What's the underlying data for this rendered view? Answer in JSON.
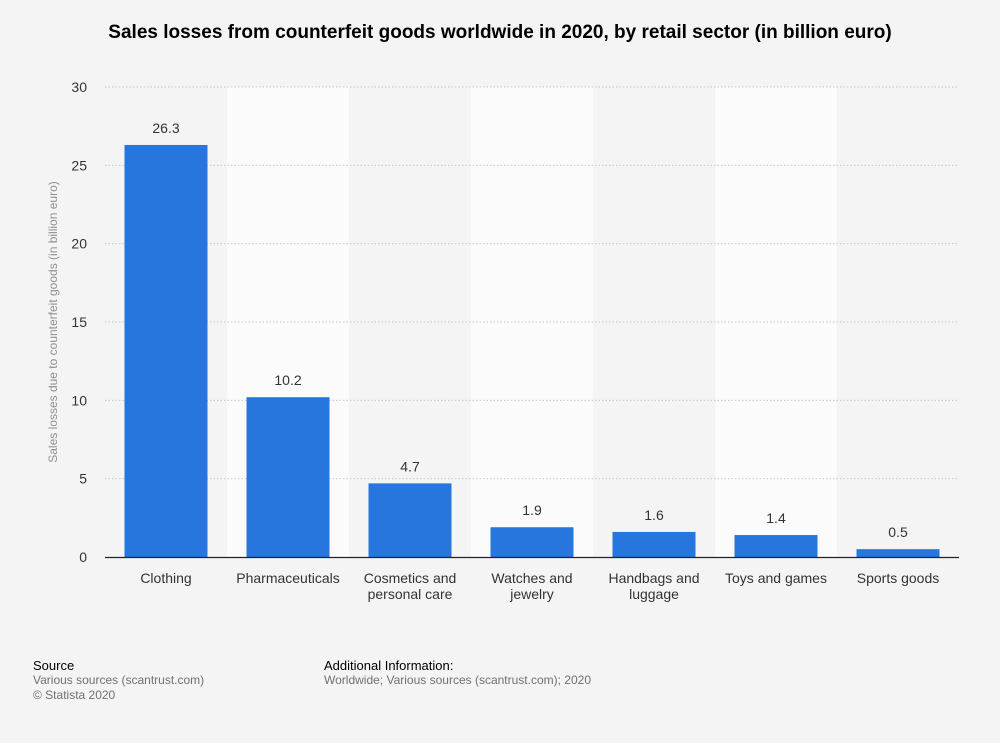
{
  "chart_data": {
    "type": "bar",
    "title": "Sales losses from counterfeit goods worldwide in 2020, by retail sector (in billion euro)",
    "categories": [
      [
        "Clothing"
      ],
      [
        "Pharmaceuticals"
      ],
      [
        "Cosmetics and",
        "personal care"
      ],
      [
        "Watches and",
        "jewelry"
      ],
      [
        "Handbags and",
        "luggage"
      ],
      [
        "Toys and games"
      ],
      [
        "Sports goods"
      ]
    ],
    "values": [
      26.3,
      10.2,
      4.7,
      1.9,
      1.6,
      1.4,
      0.5
    ],
    "value_labels": [
      "26.3",
      "10.2",
      "4.7",
      "1.9",
      "1.6",
      "1.4",
      "0.5"
    ],
    "ylabel": "Sales losses due to counterfeit goods (in billion euro)",
    "xlabel": "",
    "ylim": [
      0,
      30
    ],
    "yticks": [
      0,
      5,
      10,
      15,
      20,
      25,
      30
    ],
    "grid": true,
    "bar_color": "#2776dd",
    "band_color": "#fbfbfb"
  },
  "footer": {
    "source_heading": "Source",
    "source_line1": "Various sources (scantrust.com)",
    "source_line2": "© Statista 2020",
    "info_heading": "Additional Information:",
    "info_line1": "Worldwide; Various sources (scantrust.com); 2020"
  }
}
